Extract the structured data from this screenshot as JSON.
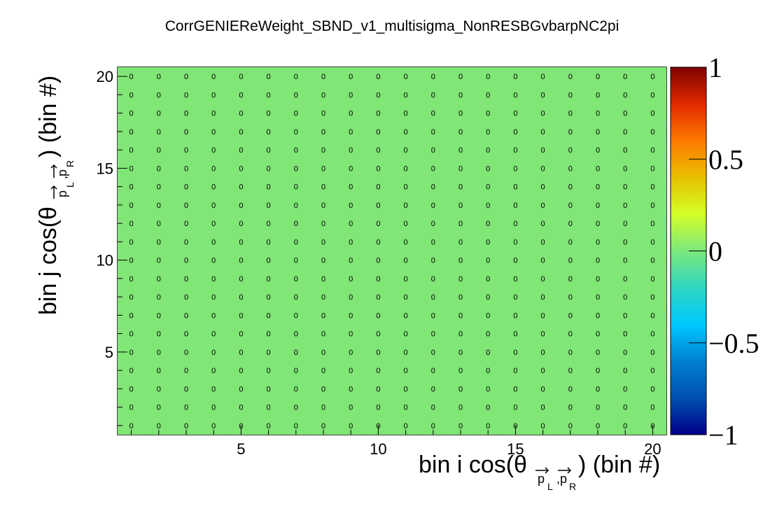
{
  "chart_data": {
    "type": "heatmap",
    "title": "CorrGENIEReWeight_SBND_v1_multisigma_NonRESBGvbarpNC2pi",
    "xlabel": {
      "prefix": "bin i cos(θ",
      "sub1": "p",
      "sub1_index": "L",
      "sep": ",",
      "sub2": "p",
      "sub2_index": "R",
      "suffix": ") (bin #)"
    },
    "ylabel": {
      "prefix": "bin j cos(θ",
      "sub1": "p",
      "sub1_index": "L",
      "sep": ",",
      "sub2": "p",
      "sub2_index": "R",
      "suffix": ") (bin #)"
    },
    "x_range": [
      0.5,
      20.5
    ],
    "y_range": [
      0.5,
      20.5
    ],
    "x_ticks": [
      "5",
      "10",
      "15",
      "20"
    ],
    "y_ticks": [
      "5",
      "10",
      "15",
      "20"
    ],
    "n_bins_x": 20,
    "n_bins_y": 20,
    "cell_value": 0,
    "cell_label": "0",
    "cell_color": "#80e676",
    "zlim": [
      -1,
      1
    ],
    "colorbar_ticks": [
      "1",
      "0.5",
      "0",
      "−0.5",
      "−1"
    ],
    "colorbar_stops": [
      "#7f0000",
      "#e02a00",
      "#ff7a00",
      "#e8c000",
      "#d4ff28",
      "#7ce87c",
      "#2ed6c0",
      "#00c8ff",
      "#0080d0",
      "#0050b0",
      "#000088"
    ]
  }
}
